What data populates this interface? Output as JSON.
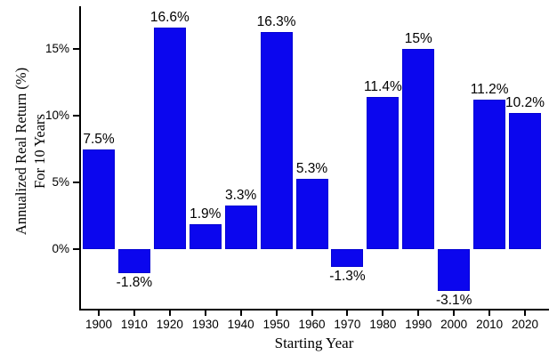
{
  "chart_data": {
    "type": "bar",
    "title": "",
    "xlabel": "Starting Year",
    "ylabel_line1": "Annualized Real Return (%)",
    "ylabel_line2": "For 10 Years",
    "categories": [
      "1900",
      "1910",
      "1920",
      "1930",
      "1940",
      "1950",
      "1960",
      "1970",
      "1980",
      "1990",
      "2000",
      "2010",
      "2020"
    ],
    "values": [
      7.5,
      -1.8,
      16.6,
      1.9,
      3.3,
      16.3,
      5.3,
      -1.3,
      11.4,
      15,
      -3.1,
      11.2,
      10.2
    ],
    "bar_labels": [
      "7.5%",
      "-1.8%",
      "16.6%",
      "1.9%",
      "3.3%",
      "16.3%",
      "5.3%",
      "-1.3%",
      "11.4%",
      "15%",
      "-3.1%",
      "11.2%",
      "10.2%"
    ],
    "yticks": [
      0,
      5,
      10,
      15
    ],
    "ytick_labels": [
      "0%",
      "5%",
      "10%",
      "15%"
    ],
    "ylim": [
      -4.6,
      18.2
    ],
    "bar_color": "#0b06ee",
    "axis_color": "#000000",
    "grid": false,
    "legend": "none"
  }
}
